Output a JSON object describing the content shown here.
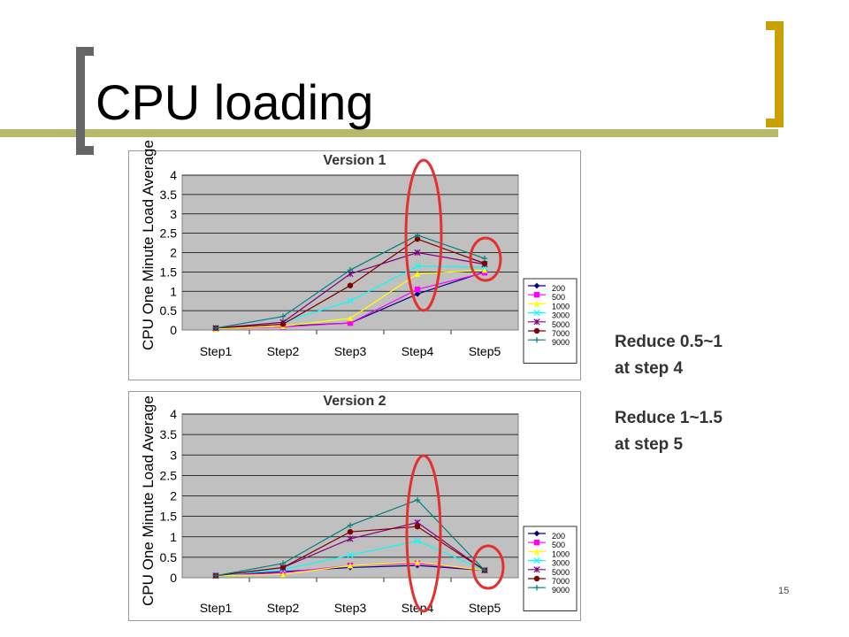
{
  "slide": {
    "title": "CPU loading",
    "notes": [
      "Reduce 0.5~1",
      "at step 4",
      "Reduce 1~1.5",
      "at step 5"
    ],
    "page_number": "15",
    "colors": {
      "accent_olive": "#b8b86a",
      "bracket_gold": "#c8a000",
      "plot_bg": "#c0c0c0",
      "highlight": "#e53030"
    }
  },
  "chart_data": [
    {
      "type": "line",
      "title": "Version 1",
      "ylabel": "CPU One Minute Load Average",
      "xlabel": "",
      "categories": [
        "Step1",
        "Step2",
        "Step3",
        "Step4",
        "Step5"
      ],
      "yticks": [
        "0",
        "0.5",
        "1",
        "1.5",
        "2",
        "2.5",
        "3",
        "3.5",
        "4"
      ],
      "ylim": [
        0,
        4
      ],
      "grid": true,
      "legend": "right",
      "highlight": "red ellipses around Step4 and Step5",
      "series": [
        {
          "name": "200",
          "color": "#000080",
          "marker": "diamond",
          "values": [
            0.03,
            0.1,
            0.18,
            0.93,
            1.5
          ]
        },
        {
          "name": "500",
          "color": "#ff00ff",
          "marker": "square",
          "values": [
            0.03,
            0.08,
            0.18,
            1.05,
            1.48
          ]
        },
        {
          "name": "1000",
          "color": "#ffff00",
          "marker": "triangle",
          "values": [
            0.03,
            0.1,
            0.3,
            1.45,
            1.55
          ]
        },
        {
          "name": "3000",
          "color": "#00ffff",
          "marker": "x",
          "values": [
            0.05,
            0.2,
            0.75,
            1.65,
            1.62
          ]
        },
        {
          "name": "5000",
          "color": "#800080",
          "marker": "star",
          "values": [
            0.05,
            0.2,
            1.45,
            2.0,
            1.7
          ]
        },
        {
          "name": "7000",
          "color": "#800000",
          "marker": "circle",
          "values": [
            0.05,
            0.15,
            1.15,
            2.35,
            1.72
          ]
        },
        {
          "name": "9000",
          "color": "#008080",
          "marker": "plus",
          "values": [
            0.05,
            0.35,
            1.55,
            2.45,
            1.85
          ]
        }
      ]
    },
    {
      "type": "line",
      "title": "Version 2",
      "ylabel": "CPU One Minute Load Average",
      "xlabel": "",
      "categories": [
        "Step1",
        "Step2",
        "Step3",
        "Step4",
        "Step5"
      ],
      "yticks": [
        "0",
        "0.5",
        "1",
        "1.5",
        "2",
        "2.5",
        "3",
        "3.5",
        "4"
      ],
      "ylim": [
        0,
        4
      ],
      "grid": true,
      "legend": "right",
      "highlight": "red ellipses around Step4 and Step5",
      "series": [
        {
          "name": "200",
          "color": "#000080",
          "marker": "diamond",
          "values": [
            0.05,
            0.15,
            0.25,
            0.3,
            0.18
          ]
        },
        {
          "name": "500",
          "color": "#ff00ff",
          "marker": "square",
          "values": [
            0.05,
            0.12,
            0.3,
            0.35,
            0.18
          ]
        },
        {
          "name": "1000",
          "color": "#ffff00",
          "marker": "triangle",
          "values": [
            0.05,
            0.08,
            0.3,
            0.38,
            0.18
          ]
        },
        {
          "name": "3000",
          "color": "#00ffff",
          "marker": "x",
          "values": [
            0.05,
            0.2,
            0.55,
            0.9,
            0.18
          ]
        },
        {
          "name": "5000",
          "color": "#800080",
          "marker": "star",
          "values": [
            0.05,
            0.25,
            0.95,
            1.35,
            0.18
          ]
        },
        {
          "name": "7000",
          "color": "#800000",
          "marker": "circle",
          "values": [
            0.05,
            0.25,
            1.12,
            1.25,
            0.18
          ]
        },
        {
          "name": "9000",
          "color": "#008080",
          "marker": "plus",
          "values": [
            0.05,
            0.35,
            1.28,
            1.9,
            0.18
          ]
        }
      ]
    }
  ]
}
